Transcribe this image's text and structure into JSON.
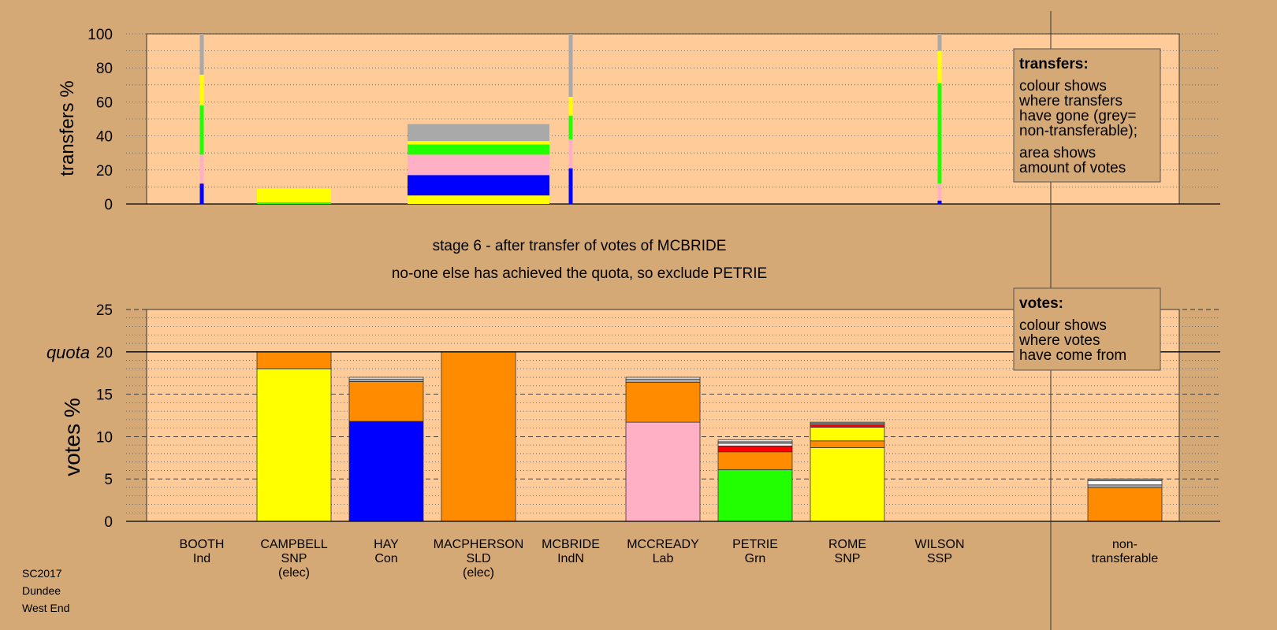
{
  "colors": {
    "background": "#d4a976",
    "plot_bg": "#ffcc99",
    "grey": "#a9a9a9",
    "yellow": "#ffff00",
    "green": "#22ff00",
    "pink": "#ffb0c4",
    "blue": "#0000ff",
    "orange": "#ff8c00",
    "red": "#ff0000",
    "white": "#ffffff"
  },
  "stage_text": {
    "line1": "stage 6 - after transfer of votes of MCBRIDE",
    "line2": "no-one else has achieved the quota, so exclude PETRIE"
  },
  "footer": {
    "line1": "SC2017",
    "line2": "Dundee",
    "line3": "West End"
  },
  "legend_transfers": {
    "title": "transfers:",
    "lines": [
      "colour shows",
      "where transfers",
      "have gone (grey=",
      "non-transferable);"
    ],
    "lines2": [
      "area shows",
      "amount of votes"
    ]
  },
  "legend_votes": {
    "title": "votes:",
    "lines": [
      "colour shows",
      "where votes",
      "have come from"
    ]
  },
  "chart_data": [
    {
      "type": "bar",
      "title": "",
      "ylabel": "transfers %",
      "ylim": [
        0,
        100
      ],
      "yticks": [
        0,
        20,
        40,
        60,
        80,
        100
      ],
      "categories": [
        "BOOTH",
        "CAMPBELL",
        "HAY",
        "MACPHERSON",
        "MCBRIDE",
        "MCCREADY",
        "PETRIE",
        "ROME",
        "WILSON"
      ],
      "columns": [
        {
          "category": "BOOTH",
          "width": "thin",
          "segments": [
            {
              "color": "blue",
              "value": 12
            },
            {
              "color": "pink",
              "value": 17
            },
            {
              "color": "green",
              "value": 29
            },
            {
              "color": "yellow",
              "value": 18
            },
            {
              "color": "grey",
              "value": 24
            }
          ]
        },
        {
          "category": "CAMPBELL",
          "width": "full",
          "segments": [
            {
              "color": "green",
              "value": 1
            },
            {
              "color": "yellow",
              "value": 8
            }
          ]
        },
        {
          "category": "MACPHERSON",
          "width": "wide",
          "segments": [
            {
              "color": "yellow",
              "value": 5
            },
            {
              "color": "blue",
              "value": 12
            },
            {
              "color": "pink",
              "value": 12
            },
            {
              "color": "green",
              "value": 6
            },
            {
              "color": "yellow",
              "value": 2
            },
            {
              "color": "grey",
              "value": 10
            }
          ]
        },
        {
          "category": "MCBRIDE",
          "width": "thin",
          "segments": [
            {
              "color": "blue",
              "value": 21
            },
            {
              "color": "pink",
              "value": 17
            },
            {
              "color": "green",
              "value": 14
            },
            {
              "color": "yellow",
              "value": 11
            },
            {
              "color": "grey",
              "value": 37
            }
          ]
        },
        {
          "category": "WILSON",
          "width": "thin",
          "segments": [
            {
              "color": "blue",
              "value": 2
            },
            {
              "color": "pink",
              "value": 10
            },
            {
              "color": "green",
              "value": 59
            },
            {
              "color": "yellow",
              "value": 19
            },
            {
              "color": "grey",
              "value": 10
            }
          ]
        }
      ]
    },
    {
      "type": "bar",
      "title": "",
      "ylabel": "votes %",
      "ylim": [
        0,
        25
      ],
      "yticks": [
        0,
        5,
        10,
        15,
        20,
        25
      ],
      "quota": 20,
      "quota_label": "quota",
      "categories": [
        "BOOTH",
        "CAMPBELL",
        "HAY",
        "MACPHERSON",
        "MCBRIDE",
        "MCCREADY",
        "PETRIE",
        "ROME",
        "WILSON",
        "non-transferable"
      ],
      "candidates": [
        {
          "name": "BOOTH",
          "party": "Ind",
          "elected": "",
          "segments": []
        },
        {
          "name": "CAMPBELL",
          "party": "SNP",
          "elected": "(elec)",
          "segments": [
            {
              "color": "yellow",
              "value": 18
            },
            {
              "color": "orange",
              "value": 2
            }
          ]
        },
        {
          "name": "HAY",
          "party": "Con",
          "elected": "",
          "segments": [
            {
              "color": "blue",
              "value": 11.8
            },
            {
              "color": "orange",
              "value": 4.7
            },
            {
              "color": "grey",
              "value": 0.3
            },
            {
              "color": "white",
              "value": 0.2
            }
          ]
        },
        {
          "name": "MACPHERSON",
          "party": "SLD",
          "elected": "(elec)",
          "segments": [
            {
              "color": "orange",
              "value": 20
            }
          ]
        },
        {
          "name": "MCBRIDE",
          "party": "IndN",
          "elected": "",
          "segments": []
        },
        {
          "name": "MCCREADY",
          "party": "Lab",
          "elected": "",
          "segments": [
            {
              "color": "pink",
              "value": 11.7
            },
            {
              "color": "orange",
              "value": 4.7
            },
            {
              "color": "grey",
              "value": 0.4
            },
            {
              "color": "white",
              "value": 0.2
            }
          ]
        },
        {
          "name": "PETRIE",
          "party": "Grn",
          "elected": "",
          "segments": [
            {
              "color": "green",
              "value": 6.1
            },
            {
              "color": "orange",
              "value": 2.1
            },
            {
              "color": "red",
              "value": 0.7
            },
            {
              "color": "white",
              "value": 0.3
            },
            {
              "color": "grey",
              "value": 0.2
            },
            {
              "color": "white",
              "value": 0.2
            }
          ]
        },
        {
          "name": "ROME",
          "party": "SNP",
          "elected": "",
          "segments": [
            {
              "color": "yellow",
              "value": 8.7
            },
            {
              "color": "orange",
              "value": 0.8
            },
            {
              "color": "yellow",
              "value": 1.6
            },
            {
              "color": "red",
              "value": 0.3
            },
            {
              "color": "grey",
              "value": 0.2
            },
            {
              "color": "white",
              "value": 0.1
            }
          ]
        },
        {
          "name": "WILSON",
          "party": "SSP",
          "elected": "",
          "segments": []
        },
        {
          "name": "non-",
          "party": "transferable",
          "elected": "",
          "segments": [
            {
              "color": "orange",
              "value": 4
            },
            {
              "color": "grey",
              "value": 0.3
            },
            {
              "color": "white",
              "value": 0.5
            },
            {
              "color": "grey",
              "value": 0.2
            }
          ]
        }
      ]
    }
  ]
}
